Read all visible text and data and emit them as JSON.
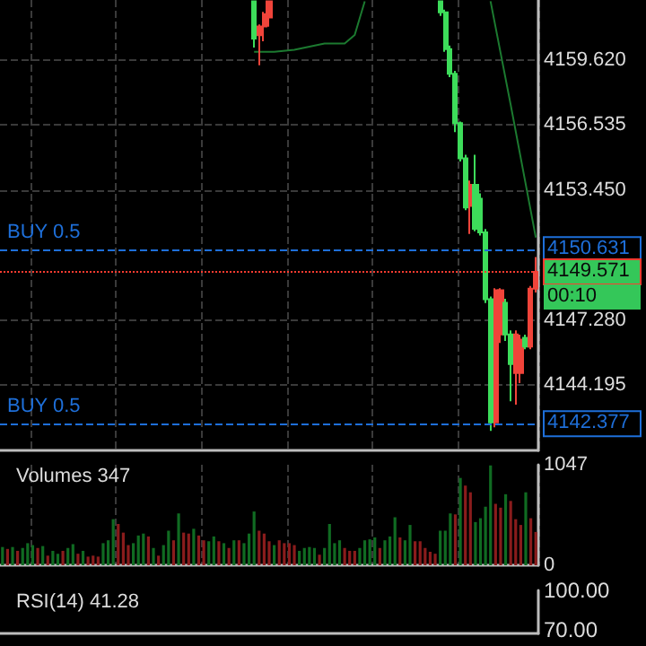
{
  "chart_data": [
    {
      "type": "candlestick",
      "categories": [
        null,
        null,
        null,
        null,
        null,
        null,
        null,
        null,
        null,
        null,
        null,
        null,
        null,
        null,
        null,
        null,
        null,
        null,
        null,
        null,
        null,
        null,
        null,
        null,
        null,
        null,
        null,
        null,
        null,
        null,
        null,
        null,
        null,
        null,
        null,
        null,
        null,
        null,
        null,
        null,
        null,
        null,
        null,
        null,
        null,
        null,
        null,
        null,
        null,
        null,
        null,
        null,
        null,
        null,
        null,
        null,
        null,
        null,
        null,
        null,
        null,
        null,
        null,
        null,
        null,
        null,
        null,
        null,
        null,
        null,
        null,
        null,
        null,
        null,
        null,
        null,
        null,
        null,
        null,
        null,
        null,
        null,
        null,
        null,
        null,
        null,
        null,
        null,
        null,
        null,
        null,
        null,
        null,
        null,
        null,
        null,
        null,
        null,
        null,
        null,
        null,
        null,
        null,
        null,
        null,
        null,
        null
      ],
      "series": [
        {
          "type": "line",
          "color": "#1c7a30",
          "values": [
            null,
            null,
            null,
            null,
            null,
            null,
            null,
            null,
            null,
            null,
            null,
            null,
            null,
            null,
            null,
            null,
            null,
            null,
            null,
            null,
            null,
            null,
            null,
            null,
            null,
            null,
            null,
            null,
            null,
            null,
            null,
            null,
            null,
            null,
            null,
            null,
            null,
            null,
            null,
            null,
            null,
            null,
            null,
            null,
            null,
            null,
            null,
            null,
            null,
            null,
            4160.0,
            null,
            null,
            null,
            4160.0,
            null,
            null,
            null,
            4160.1,
            null,
            null,
            null,
            null,
            null,
            4160.4,
            null,
            null,
            null,
            4160.4,
            null,
            4160.8,
            4161.6,
            4162.4,
            null,
            null,
            null,
            null,
            null,
            null,
            null,
            null,
            null,
            null,
            null,
            null,
            null,
            null,
            null,
            null,
            null,
            null,
            null,
            null,
            null,
            null,
            null,
            null,
            null,
            null,
            null,
            null,
            null,
            null,
            null,
            null,
            null,
            null
          ]
        },
        {
          "type": "line",
          "color": "#1c7a30",
          "values": [
            null,
            null,
            null,
            null,
            null,
            null,
            null,
            null,
            null,
            null,
            null,
            null,
            null,
            null,
            null,
            null,
            null,
            null,
            null,
            null,
            null,
            null,
            null,
            null,
            null,
            null,
            null,
            null,
            null,
            null,
            null,
            null,
            null,
            null,
            null,
            null,
            null,
            null,
            null,
            null,
            null,
            null,
            null,
            null,
            null,
            null,
            null,
            null,
            null,
            null,
            null,
            null,
            null,
            null,
            null,
            null,
            null,
            null,
            null,
            null,
            null,
            null,
            null,
            null,
            null,
            null,
            null,
            null,
            null,
            null,
            null,
            null,
            null,
            null,
            null,
            null,
            null,
            null,
            null,
            null,
            null,
            null,
            null,
            null,
            null,
            null,
            null,
            null,
            null,
            null,
            null,
            null,
            null,
            null,
            null,
            null,
            null,
            4162.4,
            null,
            null,
            null,
            4157.5,
            null,
            null,
            null,
            null,
            4151.2
          ]
        },
        {
          "ohlc": [
            null,
            null,
            null,
            null,
            null,
            null,
            null,
            null,
            null,
            null,
            null,
            null,
            null,
            null,
            null,
            null,
            null,
            null,
            null,
            null,
            null,
            null,
            null,
            null,
            null,
            null,
            null,
            null,
            null,
            null,
            null,
            null,
            null,
            null,
            null,
            null,
            null,
            null,
            null,
            null,
            null,
            null,
            null,
            null,
            null,
            null,
            null,
            null,
            null,
            null,
            [
              4162.4,
              4162.4,
              4160.21,
              4160.63
            ],
            [
              4160.79,
              4161.3,
              4159.37,
              4161.21
            ],
            [
              4161.21,
              4161.9,
              4160.5,
              4161.79
            ],
            [
              4161.63,
              4162.4,
              4161.2,
              4162.4
            ],
            null,
            null,
            null,
            null,
            null,
            null,
            null,
            null,
            null,
            null,
            null,
            null,
            null,
            null,
            null,
            null,
            null,
            null,
            null,
            null,
            null,
            null,
            null,
            null,
            null,
            null,
            null,
            null,
            null,
            null,
            null,
            null,
            null,
            [
              4162.4,
              4162.4,
              4161.7,
              4161.88
            ],
            [
              4161.88,
              4162.0,
              4160.0,
              4160.13
            ],
            [
              4160.13,
              4160.3,
              4158.8,
              4158.96
            ],
            [
              4158.96,
              4159.1,
              4156.2,
              4156.62
            ],
            [
              4156.62,
              4156.7,
              4154.8,
              4154.95
            ],
            [
              4154.95,
              4155.12,
              4152.5,
              4152.62
            ],
            [
              4152.7,
              4153.9,
              4151.37,
              4153.7
            ],
            [
              4153.7,
              4155.12,
              4151.5,
              4151.62
            ],
            [
              4153.04,
              4153.3,
              4151.3,
              4151.45
            ],
            [
              4151.45,
              4151.6,
              4148.1,
              4148.28
            ],
            [
              4148.28,
              4148.4,
              4142.03,
              4142.44
            ],
            [
              4142.44,
              4148.8,
              4142.2,
              4148.7
            ],
            [
              4146.61,
              4148.8,
              4146.2,
              4148.7
            ],
            [
              4148.11,
              4148.3,
              4146.3,
              4146.61
            ],
            [
              4146.61,
              4146.8,
              4143.44,
              4145.2
            ],
            [
              4144.78,
              4146.8,
              4143.28,
              4146.61
            ],
            [
              4144.78,
              4146.6,
              4144.3,
              4146.36
            ],
            [
              4146.45,
              4146.6,
              4145.9,
              4146.03
            ],
            [
              4146.03,
              4148.9,
              4145.9,
              4148.78
            ],
            [
              4148.78,
              4150.28,
              4148.6,
              4149.571
            ]
          ],
          "colors": [
            null,
            null,
            null,
            null,
            null,
            null,
            null,
            null,
            null,
            null,
            null,
            null,
            null,
            null,
            null,
            null,
            null,
            null,
            null,
            null,
            null,
            null,
            null,
            null,
            null,
            null,
            null,
            null,
            null,
            null,
            null,
            null,
            null,
            null,
            null,
            null,
            null,
            null,
            null,
            null,
            null,
            null,
            null,
            null,
            null,
            null,
            null,
            null,
            null,
            null,
            "#3ddc5a",
            "#f0443a",
            "#f0443a",
            "#f0443a",
            null,
            null,
            null,
            null,
            null,
            null,
            null,
            null,
            null,
            null,
            null,
            null,
            null,
            null,
            null,
            null,
            null,
            null,
            null,
            null,
            null,
            null,
            null,
            null,
            null,
            null,
            null,
            null,
            null,
            null,
            null,
            null,
            null,
            "#3ddc5a",
            "#3ddc5a",
            "#3ddc5a",
            "#3ddc5a",
            "#3ddc5a",
            "#3ddc5a",
            "#f0443a",
            "#3ddc5a",
            "#3ddc5a",
            "#3ddc5a",
            "#3ddc5a",
            "#f0443a",
            "#f0443a",
            "#3ddc5a",
            "#3ddc5a",
            "#f0443a",
            "#f0443a",
            "#3ddc5a",
            "#f0443a",
            "#f0443a"
          ]
        }
      ],
      "ylim": [
        4141.11,
        4162.46
      ],
      "yticks": [
        {
          "value": 4144.195,
          "label": "4144.195"
        },
        {
          "value": 4147.28,
          "label": "4147.280"
        },
        {
          "value": 4153.45,
          "label": "4153.450"
        },
        {
          "value": 4156.535,
          "label": "4156.535"
        },
        {
          "value": 4159.62,
          "label": "4159.620"
        }
      ],
      "ref_lines": [
        {
          "axis": "y",
          "value": 4150.631,
          "label": "4150.631",
          "color": "#1e6fd9",
          "line_style": "dashed"
        },
        {
          "axis": "y",
          "value": 4142.377,
          "label": "4142.377",
          "color": "#1e6fd9",
          "line_style": "dashed"
        },
        {
          "axis": "y",
          "value": 4149.571,
          "label": "4149.571",
          "color": "#ff3b30",
          "line_style": "dotted"
        }
      ],
      "annotations": [
        {
          "text": "BUY 0.5",
          "y": 4150.631
        },
        {
          "text": "BUY 0.5",
          "y": 4142.377
        },
        "00:10"
      ],
      "grid": true
    },
    {
      "type": "bar",
      "title": "Volumes 347",
      "categories": [
        null,
        null,
        null,
        null,
        null,
        null,
        null,
        null,
        null,
        null,
        null,
        null,
        null,
        null,
        null,
        null,
        null,
        null,
        null,
        null,
        null,
        null,
        null,
        null,
        null,
        null,
        null,
        null,
        null,
        null,
        null,
        null,
        null,
        null,
        null,
        null,
        null,
        null,
        null,
        null,
        null,
        null,
        null,
        null,
        null,
        null,
        null,
        null,
        null,
        null,
        null,
        null,
        null,
        null,
        null,
        null,
        null,
        null,
        null,
        null,
        null,
        null,
        null,
        null,
        null,
        null,
        null,
        null,
        null,
        null,
        null,
        null,
        null,
        null,
        null,
        null,
        null,
        null,
        null,
        null,
        null,
        null,
        null,
        null,
        null,
        null,
        null,
        null,
        null,
        null,
        null,
        null,
        null,
        null,
        null,
        null,
        null,
        null,
        null,
        null,
        null,
        null,
        null,
        null,
        null,
        null,
        null
      ],
      "values": [
        190,
        170,
        190,
        150,
        180,
        230,
        210,
        180,
        200,
        100,
        150,
        120,
        150,
        180,
        220,
        120,
        150,
        90,
        100,
        90,
        230,
        260,
        480,
        430,
        340,
        210,
        230,
        310,
        330,
        300,
        180,
        100,
        210,
        360,
        260,
        540,
        340,
        330,
        380,
        310,
        260,
        250,
        300,
        250,
        230,
        180,
        260,
        260,
        230,
        330,
        560,
        360,
        330,
        250,
        210,
        260,
        230,
        230,
        210,
        150,
        180,
        190,
        180,
        110,
        180,
        430,
        230,
        260,
        180,
        150,
        150,
        180,
        260,
        270,
        290,
        180,
        260,
        300,
        500,
        290,
        260,
        420,
        250,
        250,
        180,
        140,
        120,
        360,
        360,
        540,
        530,
        910,
        830,
        760,
        450,
        490,
        610,
        1040,
        640,
        600,
        740,
        670,
        480,
        420,
        760,
        490,
        347
      ],
      "colors": [
        "#106b22",
        "#8a1c1c",
        "#106b22",
        "#8a1c1c",
        "#106b22",
        "#106b22",
        "#106b22",
        "#8a1c1c",
        "#106b22",
        "#8a1c1c",
        "#106b22",
        "#106b22",
        "#8a1c1c",
        "#106b22",
        "#106b22",
        "#8a1c1c",
        "#106b22",
        "#8a1c1c",
        "#8a1c1c",
        "#8a1c1c",
        "#106b22",
        "#106b22",
        "#106b22",
        "#8a1c1c",
        "#8a1c1c",
        "#8a1c1c",
        "#106b22",
        "#106b22",
        "#106b22",
        "#8a1c1c",
        "#106b22",
        "#8a1c1c",
        "#106b22",
        "#106b22",
        "#8a1c1c",
        "#106b22",
        "#8a1c1c",
        "#8a1c1c",
        "#106b22",
        "#8a1c1c",
        "#8a1c1c",
        "#106b22",
        "#106b22",
        "#8a1c1c",
        "#106b22",
        "#8a1c1c",
        "#106b22",
        "#8a1c1c",
        "#106b22",
        "#106b22",
        "#106b22",
        "#8a1c1c",
        "#8a1c1c",
        "#8a1c1c",
        "#106b22",
        "#8a1c1c",
        "#8a1c1c",
        "#8a1c1c",
        "#8a1c1c",
        "#106b22",
        "#106b22",
        "#106b22",
        "#106b22",
        "#8a1c1c",
        "#106b22",
        "#106b22",
        "#106b22",
        "#106b22",
        "#8a1c1c",
        "#8a1c1c",
        "#8a1c1c",
        "#106b22",
        "#106b22",
        "#106b22",
        "#106b22",
        "#8a1c1c",
        "#106b22",
        "#106b22",
        "#106b22",
        "#8a1c1c",
        "#106b22",
        "#106b22",
        "#8a1c1c",
        "#8a1c1c",
        "#8a1c1c",
        "#8a1c1c",
        "#8a1c1c",
        "#106b22",
        "#106b22",
        "#106b22",
        "#8a1c1c",
        "#106b22",
        "#8a1c1c",
        "#8a1c1c",
        "#106b22",
        "#106b22",
        "#106b22",
        "#106b22",
        "#8a1c1c",
        "#8a1c1c",
        "#106b22",
        "#8a1c1c",
        "#8a1c1c",
        "#8a1c1c",
        "#106b22",
        "#8a1c1c",
        "#8a1c1c"
      ],
      "ylim": [
        0,
        1047
      ],
      "yticks": [
        0,
        1047
      ],
      "grid": "x"
    },
    {
      "type": "other",
      "title": "RSI(14) 41.28",
      "annotations": [
        "100.00",
        "70.00"
      ]
    }
  ]
}
